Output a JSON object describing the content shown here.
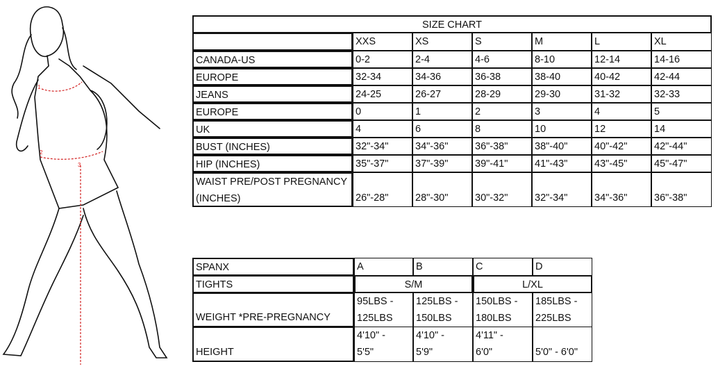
{
  "size_chart": {
    "title": "SIZE CHART",
    "sizes": [
      "XXS",
      "XS",
      "S",
      "M",
      "L",
      "XL"
    ],
    "rows": [
      {
        "label": "CANADA-US",
        "values": [
          "0-2",
          "2-4",
          "4-6",
          "8-10",
          "12-14",
          "14-16"
        ]
      },
      {
        "label": "EUROPE",
        "values": [
          "32-34",
          "34-36",
          "36-38",
          "38-40",
          "40-42",
          "42-44"
        ]
      },
      {
        "label": "JEANS",
        "values": [
          "24-25",
          "26-27",
          "28-29",
          "29-30",
          "31-32",
          "32-33"
        ]
      },
      {
        "label": "EUROPE",
        "values": [
          "0",
          "1",
          "2",
          "3",
          "4",
          "5"
        ]
      },
      {
        "label": "UK",
        "values": [
          "4",
          "6",
          "8",
          "10",
          "12",
          "14"
        ]
      },
      {
        "label": "BUST (INCHES)",
        "values": [
          "32\"-34\"",
          "34\"-36\"",
          "36\"-38\"",
          "38\"-40\"",
          "40\"-42\"",
          "42\"-44\""
        ]
      },
      {
        "label": "HIP (INCHES)",
        "values": [
          "35\"-37\"",
          "37\"-39\"",
          "39\"-41\"",
          "41\"-43\"",
          "43\"-45\"",
          "45\"-47\""
        ]
      },
      {
        "label": "WAIST PRE/POST PREGNANCY (INCHES)",
        "label_lines": [
          "WAIST PRE/POST PREGNANCY",
          "(INCHES)"
        ],
        "values": [
          "26\"-28\"",
          "28\"-30\"",
          "30\"-32\"",
          "32\"-34\"",
          "34\"-36\"",
          "36\"-38\""
        ]
      }
    ]
  },
  "spanx_chart": {
    "spanx": {
      "label": "SPANX",
      "values": [
        "A",
        "B",
        "C",
        "D"
      ]
    },
    "tights": {
      "label": "TIGHTS",
      "values": [
        "S/M",
        "L/XL"
      ]
    },
    "weight": {
      "label": "WEIGHT *PRE-PREGNANCY",
      "values": [
        [
          "95LBS -",
          "125LBS"
        ],
        [
          "125LBS -",
          "150LBS"
        ],
        [
          "150LBS -",
          "180LBS"
        ],
        [
          "185LBS -",
          "225LBS"
        ]
      ]
    },
    "height": {
      "label": "HEIGHT",
      "values": [
        [
          "4'10\" -",
          "5'5\""
        ],
        [
          "4'10\" -",
          "5'9\""
        ],
        [
          "4'11\" -",
          "6'0\""
        ],
        [
          "",
          "5'0\" - 6'0\""
        ]
      ]
    }
  },
  "figure": {
    "markers": [
      "1",
      "2",
      "3"
    ],
    "measure_color": "#d22222"
  }
}
